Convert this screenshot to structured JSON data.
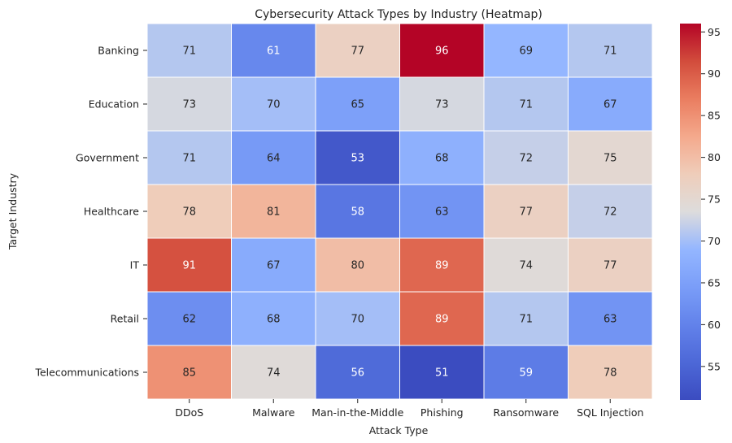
{
  "chart_data": {
    "type": "heatmap",
    "title": "Cybersecurity Attack Types by Industry (Heatmap)",
    "xlabel": "Attack Type",
    "ylabel": "Target Industry",
    "x_categories": [
      "DDoS",
      "Malware",
      "Man-in-the-Middle",
      "Phishing",
      "Ransomware",
      "SQL Injection"
    ],
    "y_categories": [
      "Banking",
      "Education",
      "Government",
      "Healthcare",
      "IT",
      "Retail",
      "Telecommunications"
    ],
    "values": [
      [
        71,
        61,
        77,
        96,
        69,
        71
      ],
      [
        73,
        70,
        65,
        73,
        71,
        67
      ],
      [
        71,
        64,
        53,
        68,
        72,
        75
      ],
      [
        78,
        81,
        58,
        63,
        77,
        72
      ],
      [
        91,
        67,
        80,
        89,
        74,
        77
      ],
      [
        62,
        68,
        70,
        89,
        71,
        63
      ],
      [
        85,
        74,
        56,
        51,
        59,
        78
      ]
    ],
    "annotated": true,
    "colormap": "coolwarm",
    "vmin": 51,
    "vmax": 96,
    "colorbar_ticks": [
      55,
      60,
      65,
      70,
      75,
      80,
      85,
      90,
      95
    ],
    "cell_border_color": "#ffffff",
    "colors": {
      "low": "#3b4cc0",
      "mid": "#dddcdc",
      "high": "#b40426"
    }
  }
}
